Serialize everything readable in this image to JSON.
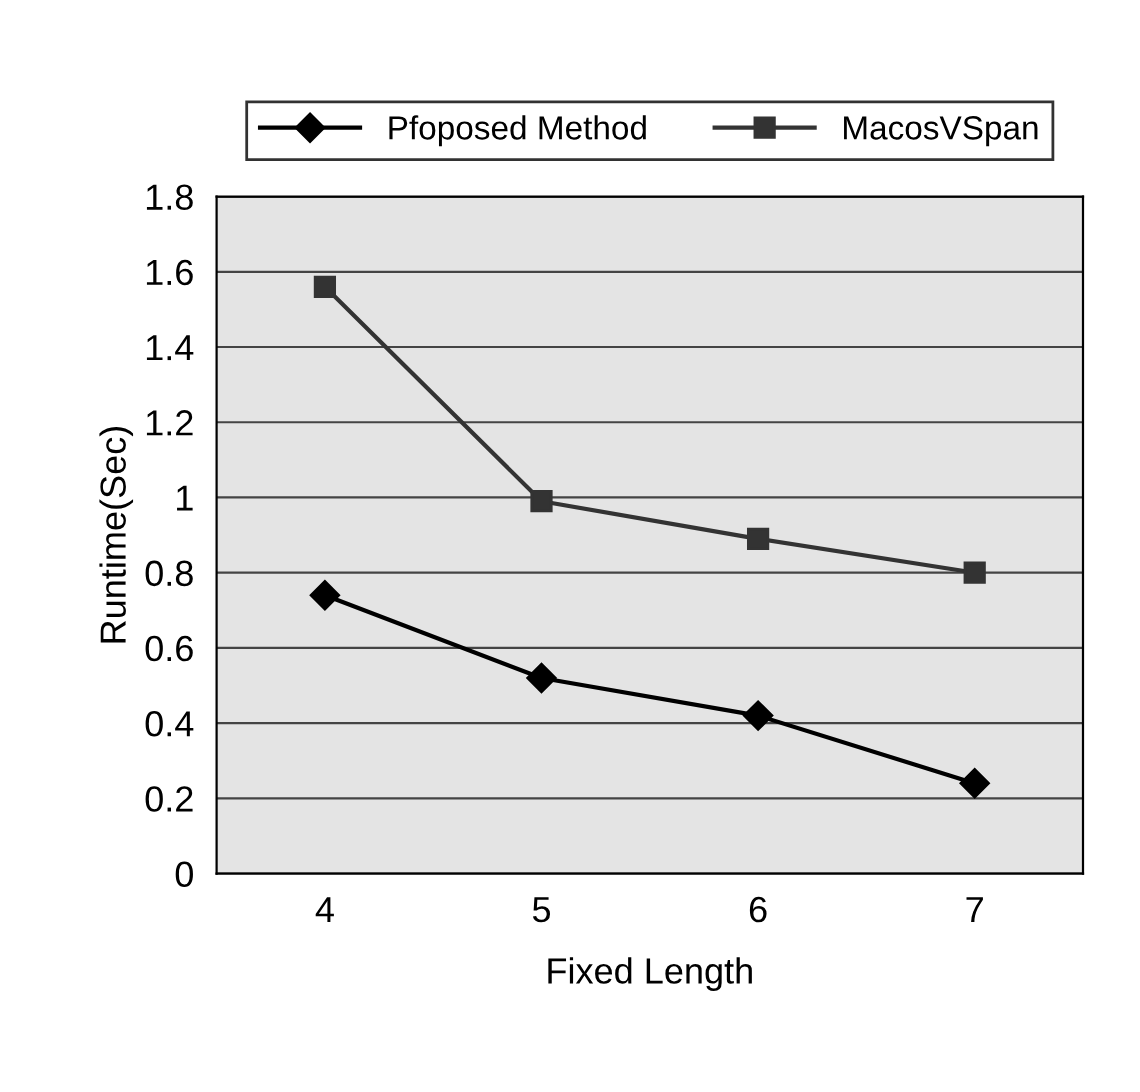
{
  "chart_data": {
    "type": "line",
    "xlabel": "Fixed Length",
    "ylabel": "Runtime(Sec)",
    "categories": [
      "4",
      "5",
      "6",
      "7"
    ],
    "series": [
      {
        "name": "Pfoposed Method",
        "color": "#000000",
        "marker": "diamond",
        "values": [
          0.74,
          0.52,
          0.42,
          0.24
        ]
      },
      {
        "name": "MacosVSpan",
        "color": "#333333",
        "marker": "square",
        "values": [
          1.56,
          0.99,
          0.89,
          0.8
        ]
      }
    ],
    "ylim": [
      0,
      1.8
    ],
    "yticks": [
      0,
      0.2,
      0.4,
      0.6,
      0.8,
      1,
      1.2,
      1.4,
      1.6,
      1.8
    ],
    "grid": "y",
    "legend": "top",
    "line_style": "solid"
  }
}
